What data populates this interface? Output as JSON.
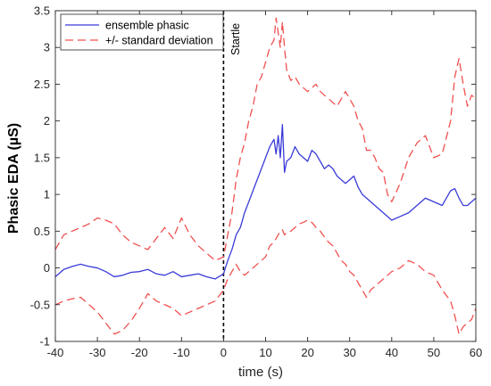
{
  "chart_data": {
    "type": "line",
    "xlabel": "time (s)",
    "ylabel": "Phasic EDA (µS)",
    "xlim": [
      -40,
      60
    ],
    "ylim": [
      -1,
      3.5
    ],
    "xticks": [
      -40,
      -30,
      -20,
      -10,
      0,
      10,
      20,
      30,
      40,
      50,
      60
    ],
    "yticks": [
      -1,
      -0.5,
      0,
      0.5,
      1,
      1.5,
      2,
      2.5,
      3,
      3.5
    ],
    "ytick_labels": [
      "-1",
      "-0.5",
      "0",
      "0.5",
      "1",
      "1.5",
      "2",
      "2.5",
      "3",
      "3.5"
    ],
    "grid": false,
    "legend_position": "top-left",
    "annotation": {
      "text": "Startle",
      "x": 0
    },
    "series": [
      {
        "name": "ensemble phasic",
        "color": "#3b3bd9",
        "style": "solid",
        "x": [
          -40,
          -38,
          -36,
          -34,
          -32,
          -30,
          -28,
          -26,
          -24,
          -22,
          -20,
          -18,
          -16,
          -14,
          -12,
          -10,
          -8,
          -6,
          -4,
          -2,
          0,
          1,
          2,
          3,
          4,
          5,
          6,
          7,
          8,
          9,
          10,
          11,
          12,
          12.5,
          13,
          13.5,
          14,
          14.5,
          15,
          16,
          17,
          18,
          19,
          20,
          21,
          22,
          23,
          24,
          25,
          26,
          27,
          28,
          29,
          30,
          31,
          32,
          33,
          34,
          35,
          36,
          37,
          38,
          39,
          40,
          42,
          44,
          46,
          48,
          50,
          52,
          54,
          55,
          56,
          57,
          58,
          59,
          60
        ],
        "values": [
          -0.12,
          -0.02,
          0.02,
          0.05,
          0.02,
          0.0,
          -0.05,
          -0.12,
          -0.1,
          -0.06,
          -0.05,
          -0.02,
          -0.08,
          -0.1,
          -0.05,
          -0.12,
          -0.1,
          -0.08,
          -0.12,
          -0.15,
          -0.08,
          0.1,
          0.25,
          0.45,
          0.55,
          0.75,
          0.9,
          1.05,
          1.2,
          1.35,
          1.5,
          1.65,
          1.75,
          1.55,
          1.8,
          1.5,
          1.95,
          1.3,
          1.45,
          1.5,
          1.65,
          1.55,
          1.5,
          1.45,
          1.6,
          1.55,
          1.45,
          1.35,
          1.4,
          1.35,
          1.25,
          1.2,
          1.15,
          1.2,
          1.25,
          1.1,
          1.0,
          0.95,
          0.9,
          0.85,
          0.8,
          0.75,
          0.7,
          0.65,
          0.7,
          0.75,
          0.85,
          0.95,
          0.9,
          0.85,
          1.05,
          1.08,
          0.95,
          0.85,
          0.85,
          0.9,
          0.95
        ]
      },
      {
        "name": "+/- standard deviation",
        "color": "#f05050",
        "style": "dashed",
        "x": [
          -40,
          -38,
          -36,
          -34,
          -32,
          -30,
          -28,
          -26,
          -24,
          -22,
          -20,
          -18,
          -16,
          -14,
          -12,
          -10,
          -8,
          -6,
          -4,
          -2,
          0,
          1,
          2,
          3,
          4,
          5,
          6,
          7,
          8,
          9,
          10,
          11,
          12,
          12.5,
          13,
          13.5,
          14,
          14.5,
          15,
          16,
          17,
          18,
          19,
          20,
          21,
          22,
          23,
          24,
          25,
          26,
          27,
          28,
          29,
          30,
          31,
          32,
          33,
          34,
          35,
          36,
          37,
          38,
          39,
          40,
          42,
          44,
          46,
          48,
          50,
          52,
          54,
          55,
          56,
          57,
          58,
          59,
          60
        ],
        "values": [
          0.25,
          0.45,
          0.5,
          0.55,
          0.6,
          0.68,
          0.65,
          0.6,
          0.45,
          0.35,
          0.3,
          0.25,
          0.4,
          0.55,
          0.4,
          0.68,
          0.45,
          0.3,
          0.2,
          0.1,
          0.15,
          0.45,
          0.75,
          1.2,
          1.5,
          1.7,
          2.0,
          2.2,
          2.5,
          2.6,
          2.8,
          3.0,
          3.1,
          3.4,
          3.2,
          3.0,
          3.35,
          3.0,
          2.7,
          2.55,
          2.6,
          2.5,
          2.45,
          2.4,
          2.45,
          2.5,
          2.4,
          2.35,
          2.3,
          2.25,
          2.2,
          2.3,
          2.4,
          2.3,
          2.2,
          2.0,
          1.9,
          1.6,
          1.6,
          1.5,
          1.35,
          1.3,
          1.0,
          0.9,
          1.15,
          1.5,
          1.7,
          1.8,
          1.5,
          1.55,
          2.0,
          2.6,
          2.85,
          2.5,
          2.2,
          2.35,
          2.3
        ]
      },
      {
        "name": "+/- standard deviation",
        "color": "#f05050",
        "style": "dashed",
        "x": [
          -40,
          -38,
          -36,
          -34,
          -32,
          -30,
          -28,
          -26,
          -24,
          -22,
          -20,
          -18,
          -16,
          -14,
          -12,
          -10,
          -8,
          -6,
          -4,
          -2,
          0,
          1,
          2,
          3,
          4,
          5,
          6,
          7,
          8,
          9,
          10,
          11,
          12,
          12.5,
          13,
          13.5,
          14,
          14.5,
          15,
          16,
          17,
          18,
          19,
          20,
          21,
          22,
          23,
          24,
          25,
          26,
          27,
          28,
          29,
          30,
          31,
          32,
          33,
          34,
          35,
          36,
          37,
          38,
          39,
          40,
          42,
          44,
          46,
          48,
          50,
          52,
          54,
          55,
          56,
          57,
          58,
          59,
          60
        ],
        "values": [
          -0.5,
          -0.45,
          -0.42,
          -0.4,
          -0.5,
          -0.6,
          -0.75,
          -0.9,
          -0.85,
          -0.72,
          -0.55,
          -0.35,
          -0.45,
          -0.5,
          -0.55,
          -0.65,
          -0.6,
          -0.55,
          -0.5,
          -0.45,
          -0.3,
          -0.15,
          -0.05,
          0.05,
          -0.05,
          -0.1,
          -0.05,
          0.0,
          0.05,
          0.1,
          0.15,
          0.3,
          0.35,
          0.4,
          0.45,
          0.5,
          0.52,
          0.45,
          0.48,
          0.5,
          0.55,
          0.6,
          0.62,
          0.65,
          0.62,
          0.55,
          0.5,
          0.42,
          0.35,
          0.3,
          0.2,
          0.1,
          0.05,
          -0.05,
          -0.1,
          -0.2,
          -0.3,
          -0.4,
          -0.3,
          -0.25,
          -0.2,
          -0.15,
          -0.1,
          -0.05,
          0.0,
          0.1,
          0.05,
          -0.05,
          -0.1,
          -0.3,
          -0.45,
          -0.65,
          -0.9,
          -0.8,
          -0.75,
          -0.7,
          -0.55
        ]
      }
    ]
  }
}
